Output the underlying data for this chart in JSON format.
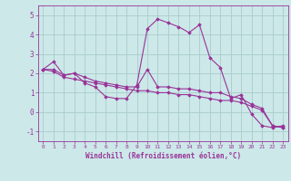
{
  "background_color": "#cce8e8",
  "grid_color": "#aacccc",
  "line_color": "#993399",
  "xlim": [
    -0.5,
    23.5
  ],
  "ylim": [
    -1.5,
    5.5
  ],
  "yticks": [
    -1,
    0,
    1,
    2,
    3,
    4,
    5
  ],
  "xticks": [
    0,
    1,
    2,
    3,
    4,
    5,
    6,
    7,
    8,
    9,
    10,
    11,
    12,
    13,
    14,
    15,
    16,
    17,
    18,
    19,
    20,
    21,
    22,
    23
  ],
  "xlabel": "Windchill (Refroidissement éolien,°C)",
  "series1": [
    2.2,
    2.6,
    1.9,
    2.0,
    1.5,
    1.3,
    0.8,
    0.7,
    0.7,
    1.4,
    4.3,
    4.8,
    4.6,
    4.4,
    4.1,
    4.5,
    2.8,
    2.3,
    0.7,
    0.9,
    -0.1,
    -0.7,
    -0.8,
    -0.7
  ],
  "series2": [
    2.2,
    2.2,
    1.9,
    2.0,
    1.8,
    1.6,
    1.5,
    1.4,
    1.3,
    1.3,
    2.2,
    1.3,
    1.3,
    1.2,
    1.2,
    1.1,
    1.0,
    1.0,
    0.8,
    0.7,
    0.4,
    0.2,
    -0.7,
    -0.8
  ],
  "series3": [
    2.2,
    2.1,
    1.8,
    1.7,
    1.6,
    1.5,
    1.4,
    1.3,
    1.2,
    1.1,
    1.1,
    1.0,
    1.0,
    0.9,
    0.9,
    0.8,
    0.7,
    0.6,
    0.6,
    0.5,
    0.3,
    0.1,
    -0.7,
    -0.8
  ]
}
